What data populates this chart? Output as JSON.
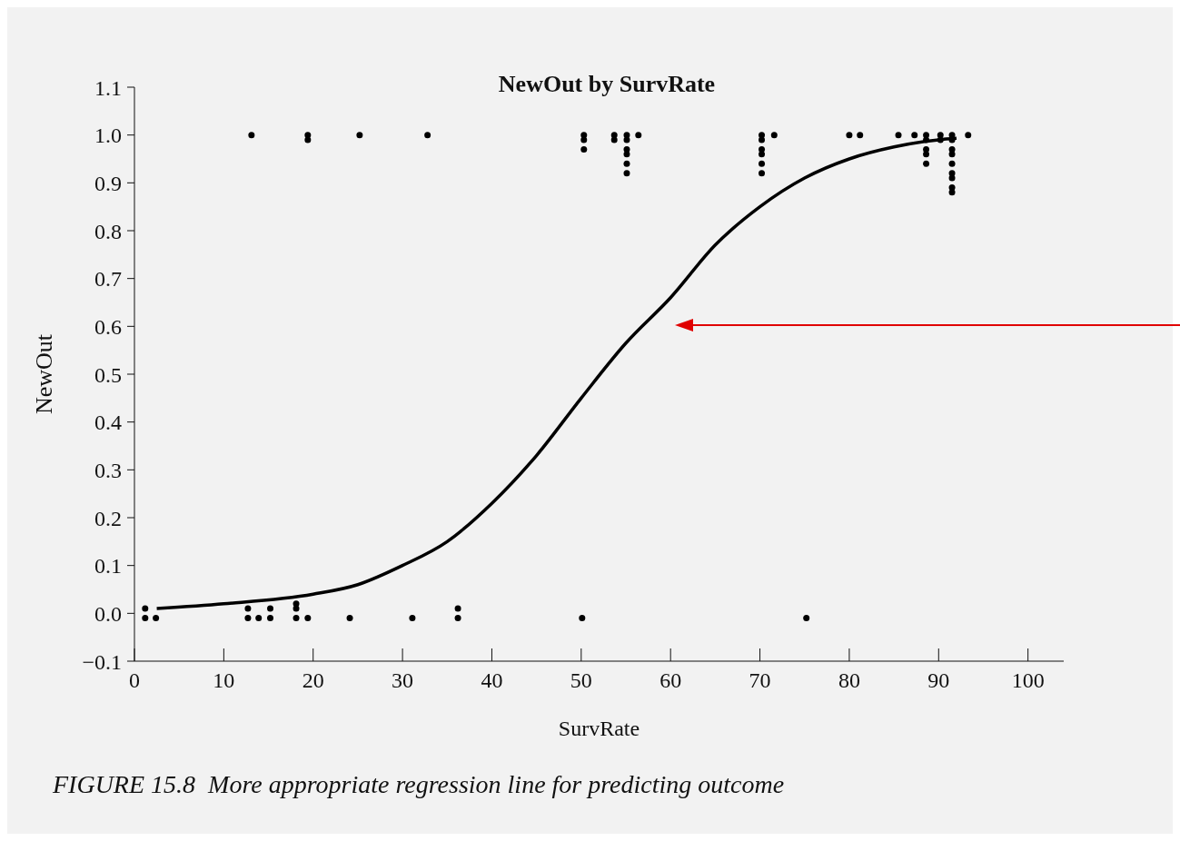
{
  "chart_data": {
    "type": "scatter",
    "title": "NewOut by SurvRate",
    "xlabel": "SurvRate",
    "ylabel": "NewOut",
    "annotations": [
      "FIGURE 15.8  More appropriate regression line for predicting outcome"
    ],
    "xlim": [
      0,
      104
    ],
    "xticks": [
      0,
      10,
      20,
      30,
      40,
      50,
      60,
      70,
      80,
      90,
      100
    ],
    "ylim": [
      -0.1,
      1.1
    ],
    "yticks": [
      {
        "value": -0.1,
        "label": "−0.1"
      },
      {
        "value": 0,
        "label": "0.0"
      },
      {
        "value": 0.1,
        "label": "0.1"
      },
      {
        "value": 0.2,
        "label": "0.2"
      },
      {
        "value": 0.3,
        "label": "0.3"
      },
      {
        "value": 0.4,
        "label": "0.4"
      },
      {
        "value": 0.5,
        "label": "0.5"
      },
      {
        "value": 0.6,
        "label": "0.6"
      },
      {
        "value": 0.7,
        "label": "0.7"
      },
      {
        "value": 0.8,
        "label": "0.8"
      },
      {
        "value": 0.9,
        "label": "0.9"
      },
      {
        "value": 1,
        "label": "1.0"
      },
      {
        "value": 1.1,
        "label": "1.1"
      }
    ],
    "grid": false,
    "line_style": "solid",
    "series": [
      {
        "marker": "circle",
        "color": "#000000",
        "x": [
          13.1,
          19.4,
          19.4,
          25.2,
          32.8,
          50.3,
          50.3,
          50.3,
          53.7,
          53.7,
          55.1,
          55.1,
          55.1,
          55.1,
          55.1,
          55.1,
          56.4,
          70.2,
          70.2,
          70.2,
          70.2,
          70.2,
          70.2,
          71.6,
          80.0,
          81.2,
          85.5,
          87.3,
          88.6,
          88.6,
          88.6,
          88.6,
          88.6,
          90.2,
          90.2,
          91.5,
          91.5,
          91.5,
          91.5,
          91.5,
          91.5,
          91.5,
          91.5,
          91.5,
          93.3,
          1.2,
          1.2,
          2.4,
          12.7,
          12.7,
          13.9,
          15.2,
          15.2,
          18.1,
          18.1,
          18.1,
          19.4,
          24.1,
          31.1,
          36.2,
          36.2,
          50.1,
          75.2
        ],
        "values": [
          1.0,
          1.0,
          0.99,
          1.0,
          1.0,
          1.0,
          0.99,
          0.97,
          1.0,
          0.99,
          1.0,
          0.99,
          0.97,
          0.96,
          0.94,
          0.92,
          1.0,
          1.0,
          0.99,
          0.97,
          0.96,
          0.94,
          0.92,
          1.0,
          1.0,
          1.0,
          1.0,
          1.0,
          1.0,
          0.99,
          0.97,
          0.96,
          0.94,
          1.0,
          0.99,
          1.0,
          0.99,
          0.97,
          0.96,
          0.94,
          0.92,
          0.91,
          0.89,
          0.88,
          1.0,
          0.01,
          -0.01,
          -0.01,
          0.01,
          -0.01,
          -0.01,
          0.01,
          -0.01,
          0.02,
          0.01,
          -0.01,
          -0.01,
          -0.01,
          -0.01,
          0.01,
          -0.01,
          -0.01,
          -0.01
        ]
      },
      {
        "type": "line",
        "marker": "none",
        "color": "#000000",
        "x": [
          2.5,
          10,
          20,
          25,
          30,
          35,
          40,
          45,
          50,
          55,
          60,
          65,
          70,
          75,
          80,
          85,
          90,
          92
        ],
        "values": [
          0.01,
          0.02,
          0.04,
          0.06,
          0.1,
          0.15,
          0.23,
          0.33,
          0.45,
          0.565,
          0.66,
          0.77,
          0.85,
          0.91,
          0.95,
          0.975,
          0.99,
          0.993
        ]
      }
    ]
  }
}
